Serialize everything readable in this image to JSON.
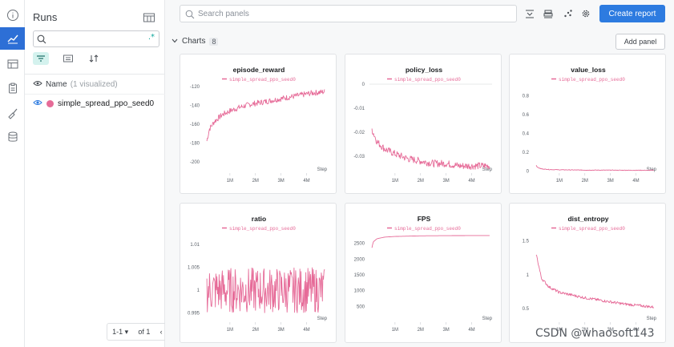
{
  "sidebar": {
    "title": "Runs",
    "search_value": "",
    "header_label": "Name",
    "header_count": "(1 visualized)",
    "runs": [
      {
        "name": "simple_spread_ppo_seed0",
        "color": "#e66b98"
      }
    ],
    "pager": {
      "range": "1-1",
      "of_label": "of 1"
    }
  },
  "main": {
    "search_placeholder": "Search panels",
    "create_report_label": "Create report",
    "section_title": "Charts",
    "section_count": "8",
    "add_panel_label": "Add panel"
  },
  "accent_color": "#2d7be0",
  "series_color": "#e66b98",
  "chart_data": [
    {
      "type": "line",
      "id": "episode_reward",
      "title": "episode_reward",
      "legend": "simple_spread_ppo_seed0",
      "xlabel": "Step",
      "xticks": [
        1000000,
        2000000,
        3000000,
        4000000
      ],
      "xtick_labels": [
        "1M",
        "2M",
        "3M",
        "4M"
      ],
      "xlim": [
        0,
        4800000
      ],
      "yticks": [
        -120,
        -140,
        -160,
        -180,
        -200
      ],
      "ytick_labels": [
        "-120",
        "-140",
        "-160",
        "-180",
        "-200"
      ],
      "ylim": [
        -212,
        -115
      ],
      "grid": false,
      "x": [
        0,
        80000,
        200000,
        400000,
        700000,
        1000000,
        1400000,
        1800000,
        2200000,
        2600000,
        3000000,
        3400000,
        3800000,
        4200000,
        4600000,
        4800000
      ],
      "values": [
        -205,
        -180,
        -165,
        -157,
        -150,
        -146,
        -142,
        -139,
        -137,
        -135,
        -133,
        -131,
        -129,
        -127,
        -126,
        -125
      ],
      "noise": 3
    },
    {
      "type": "line",
      "id": "policy_loss",
      "title": "policy_loss",
      "legend": "simple_spread_ppo_seed0",
      "xlabel": "Step",
      "xticks": [
        1000000,
        2000000,
        3000000,
        4000000
      ],
      "xtick_labels": [
        "1M",
        "2M",
        "3M",
        "4M"
      ],
      "xlim": [
        0,
        4800000
      ],
      "yticks": [
        0,
        -0.01,
        -0.02,
        -0.03
      ],
      "ytick_labels": [
        "0",
        "-0.01",
        "-0.02",
        "-0.03"
      ],
      "ylim": [
        -0.037,
        0.001
      ],
      "grid": false,
      "zero_line": true,
      "x": [
        0,
        100000,
        300000,
        600000,
        1000000,
        1500000,
        2000000,
        2500000,
        3000000,
        3500000,
        4000000,
        4500000,
        4800000
      ],
      "values": [
        -0.011,
        -0.019,
        -0.024,
        -0.027,
        -0.029,
        -0.031,
        -0.032,
        -0.033,
        -0.033,
        -0.034,
        -0.034,
        -0.034,
        -0.034
      ],
      "noise": 0.0015
    },
    {
      "type": "line",
      "id": "value_loss",
      "title": "value_loss",
      "legend": "simple_spread_ppo_seed0",
      "xlabel": "Step",
      "xticks": [
        1000000,
        2000000,
        3000000,
        4000000
      ],
      "xtick_labels": [
        "1M",
        "2M",
        "3M",
        "4M"
      ],
      "xlim": [
        0,
        4800000
      ],
      "yticks": [
        0.8,
        0.6,
        0.4,
        0.2,
        0
      ],
      "ytick_labels": [
        "0.8",
        "0.6",
        "0.4",
        "0.2",
        "0"
      ],
      "ylim": [
        -0.02,
        0.95
      ],
      "grid": false,
      "x": [
        0,
        15000,
        40000,
        80000,
        150000,
        300000,
        600000,
        1000000,
        2000000,
        3000000,
        4000000,
        4800000
      ],
      "values": [
        0.9,
        0.4,
        0.15,
        0.07,
        0.04,
        0.025,
        0.018,
        0.015,
        0.012,
        0.011,
        0.01,
        0.01
      ],
      "noise": 0.003
    },
    {
      "type": "line",
      "id": "ratio",
      "title": "ratio",
      "legend": "simple_spread_ppo_seed0",
      "xlabel": "Step",
      "xticks": [
        1000000,
        2000000,
        3000000,
        4000000
      ],
      "xtick_labels": [
        "1M",
        "2M",
        "3M",
        "4M"
      ],
      "xlim": [
        0,
        4800000
      ],
      "yticks": [
        1.01,
        1.005,
        1,
        0.995
      ],
      "ytick_labels": [
        "1.01",
        "1.005",
        "1",
        "0.995"
      ],
      "ylim": [
        0.993,
        1.013
      ],
      "grid": false,
      "x": [
        0,
        4800000
      ],
      "values": [
        1.0,
        1.0
      ],
      "noise": 0.005
    },
    {
      "type": "line",
      "id": "fps",
      "title": "FPS",
      "legend": "simple_spread_ppo_seed0",
      "xlabel": "Step",
      "xticks": [
        1000000,
        2000000,
        3000000,
        4000000
      ],
      "xtick_labels": [
        "1M",
        "2M",
        "3M",
        "4M"
      ],
      "xlim": [
        0,
        4800000
      ],
      "yticks": [
        2500,
        2000,
        1500,
        1000,
        500
      ],
      "ytick_labels": [
        "2500",
        "2000",
        "1500",
        "1000",
        "500"
      ],
      "ylim": [
        0,
        2900
      ],
      "grid": false,
      "x": [
        0,
        50000,
        150000,
        300000,
        600000,
        1000000,
        1500000,
        2000000,
        3000000,
        4000000,
        4800000
      ],
      "values": [
        200,
        2200,
        2550,
        2650,
        2700,
        2720,
        2730,
        2740,
        2745,
        2750,
        2750
      ],
      "noise": 0
    },
    {
      "type": "line",
      "id": "dist_entropy",
      "title": "dist_entropy",
      "legend": "simple_spread_ppo_seed0",
      "xlabel": "Step",
      "xticks": [
        1000000,
        2000000,
        3000000,
        4000000
      ],
      "xtick_labels": [
        "1M",
        "2M",
        "3M",
        "4M"
      ],
      "xlim": [
        0,
        4800000
      ],
      "yticks": [
        1.5,
        1,
        0.5
      ],
      "ytick_labels": [
        "1.5",
        "1",
        "0.5"
      ],
      "ylim": [
        0.3,
        1.65
      ],
      "grid": false,
      "x": [
        0,
        100000,
        300000,
        600000,
        1000000,
        1500000,
        2000000,
        2500000,
        3000000,
        3500000,
        4000000,
        4500000,
        4800000
      ],
      "values": [
        1.6,
        1.3,
        0.95,
        0.82,
        0.74,
        0.7,
        0.66,
        0.63,
        0.6,
        0.57,
        0.55,
        0.53,
        0.52
      ],
      "noise": 0.02
    }
  ],
  "watermark": "CSDN @whaosoft143"
}
